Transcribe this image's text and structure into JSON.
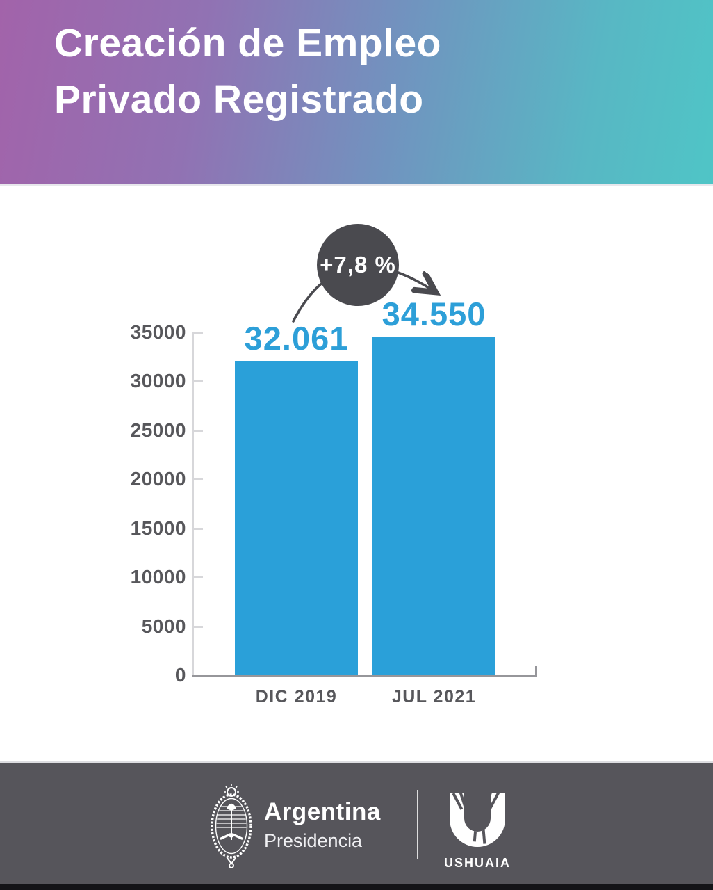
{
  "header": {
    "title_line1": "Creación de Empleo",
    "title_line2": "Privado Registrado"
  },
  "chart_data": {
    "type": "bar",
    "title": "Creación de Empleo Privado Registrado",
    "categories": [
      "DIC 2019",
      "JUL 2021"
    ],
    "values": [
      32061,
      34550
    ],
    "value_labels": [
      "32.061",
      "34.550"
    ],
    "y_ticks": [
      0,
      5000,
      10000,
      15000,
      20000,
      25000,
      30000,
      35000
    ],
    "ylim": [
      0,
      35000
    ],
    "xlabel": "",
    "ylabel": "",
    "grid": false,
    "legend": false,
    "bar_color": "#2aa0d9",
    "value_label_color": "#2d9fd8",
    "annotation": {
      "text": "+7,8 %",
      "style": "circle-badge-with-arrow"
    }
  },
  "badge": {
    "label": "+7,8 %"
  },
  "footer": {
    "argentina": {
      "name": "Argentina",
      "subtitle": "Presidencia"
    },
    "ushuaia": {
      "name": "USHUAIA"
    }
  },
  "icons": {
    "coat_of_arms": "argentina-coat-of-arms-icon",
    "ushuaia_u": "ushuaia-u-icon",
    "arrow": "curved-arrow-icon"
  },
  "colors": {
    "header_gradient_start": "#a263aa",
    "header_gradient_mid": "#7193bf",
    "header_gradient_end": "#4fc5c6",
    "bar": "#2aa0d9",
    "axis_text": "#57575b",
    "axis_line": "#d7d7da",
    "baseline": "#96969a",
    "badge_bg": "#4a4a4f",
    "badge_text": "#ffffff",
    "footer_bg": "#56555b",
    "footer_bottom_strip": "#141418",
    "title_text": "#ffffff"
  }
}
